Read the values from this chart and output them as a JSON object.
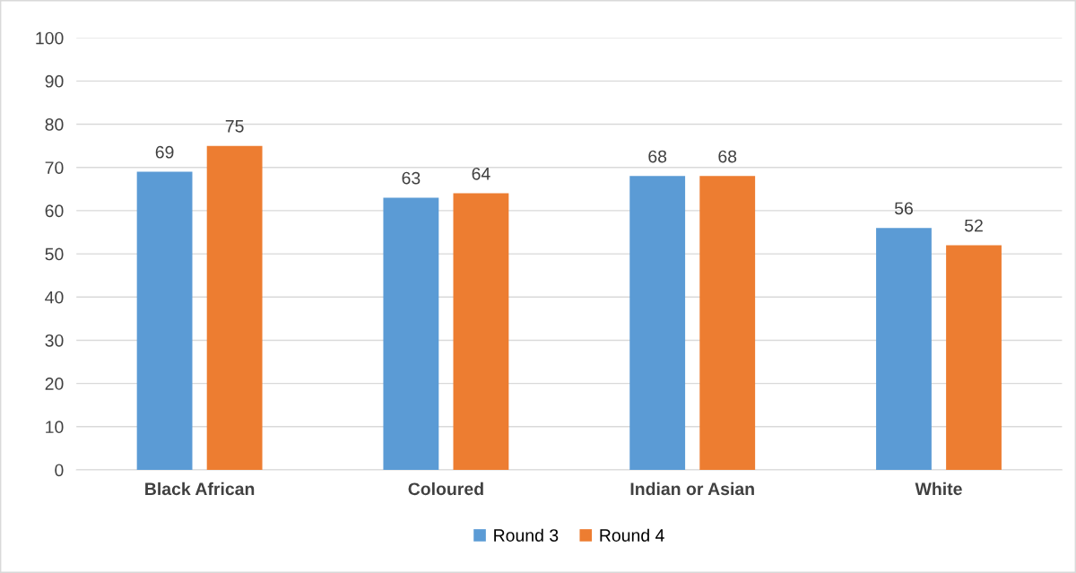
{
  "chart_data": {
    "type": "bar",
    "categories": [
      "Black African",
      "Coloured",
      "Indian or Asian",
      "White"
    ],
    "series": [
      {
        "name": "Round 3",
        "color": "#5b9bd5",
        "values": [
          69,
          63,
          68,
          56
        ]
      },
      {
        "name": "Round 4",
        "color": "#ed7d31",
        "values": [
          75,
          64,
          68,
          52
        ]
      }
    ],
    "ylim": [
      0,
      100
    ],
    "yticks": [
      0,
      10,
      20,
      30,
      40,
      50,
      60,
      70,
      80,
      90,
      100
    ],
    "grid": "y",
    "legend": "bottom",
    "data_labels": true
  }
}
